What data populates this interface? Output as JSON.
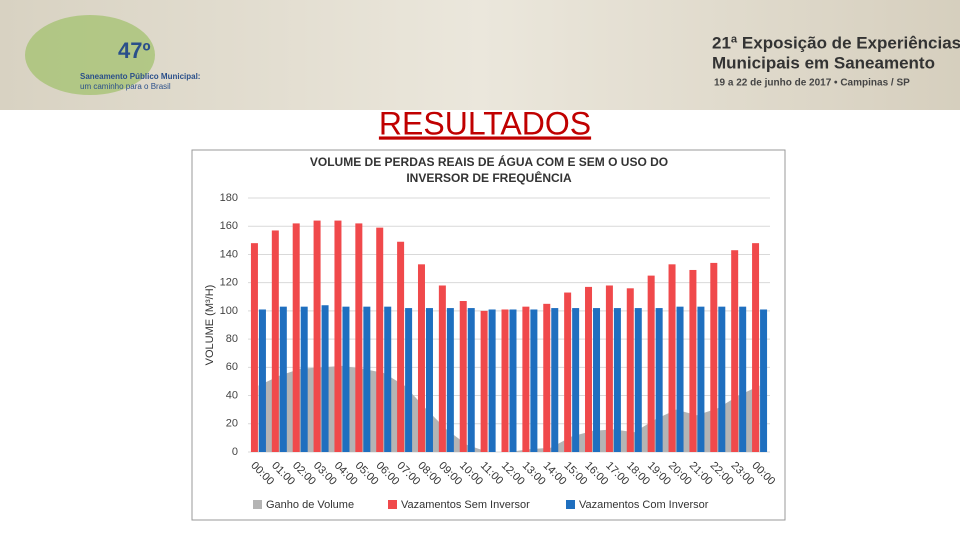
{
  "header": {
    "left_badge": "47º",
    "left_line1": "Saneamento Público Municipal:",
    "left_line2": "um caminho para o Brasil",
    "right_line1": "21ª Exposição de Experiências",
    "right_line2": "Municipais em Saneamento",
    "right_line3": "19 a 22 de junho de 2017 • Campinas / SP"
  },
  "slide_title": "RESULTADOS",
  "chart_data": {
    "type": "bar",
    "title": "VOLUME DE PERDAS REAIS DE ÁGUA COM E SEM O USO DO",
    "title_line2": "INVERSOR DE FREQUÊNCIA",
    "y_label": "VOLUME (M³/H)",
    "categories": [
      "00:00",
      "01:00",
      "02:00",
      "03:00",
      "04:00",
      "05:00",
      "06:00",
      "07:00",
      "08:00",
      "09:00",
      "10:00",
      "11:00",
      "12:00",
      "13:00",
      "14:00",
      "15:00",
      "16:00",
      "17:00",
      "18:00",
      "19:00",
      "20:00",
      "21:00",
      "22:00",
      "23:00",
      "00:00"
    ],
    "series": [
      {
        "name": "Ganho de Volume",
        "color": "#b4b4b4",
        "kind": "area",
        "values": [
          47,
          54,
          59,
          60,
          61,
          59,
          56,
          47,
          31,
          16,
          5,
          0,
          0,
          2,
          3,
          11,
          15,
          16,
          14,
          23,
          30,
          26,
          31,
          40,
          47
        ]
      },
      {
        "name": "Vazamentos Sem Inversor",
        "color": "#f0494b",
        "kind": "bar",
        "values": [
          148,
          157,
          162,
          164,
          164,
          162,
          159,
          149,
          133,
          118,
          107,
          100,
          101,
          103,
          105,
          113,
          117,
          118,
          116,
          125,
          133,
          129,
          134,
          143,
          148
        ]
      },
      {
        "name": "Vazamentos Com Inversor",
        "color": "#1f6fbf",
        "kind": "bar",
        "values": [
          101,
          103,
          103,
          104,
          103,
          103,
          103,
          102,
          102,
          102,
          102,
          101,
          101,
          101,
          102,
          102,
          102,
          102,
          102,
          102,
          103,
          103,
          103,
          103,
          101
        ]
      }
    ],
    "ylim": [
      0,
      180
    ],
    "yticks": [
      0,
      20,
      40,
      60,
      80,
      100,
      120,
      140,
      160,
      180
    ],
    "grid": true,
    "legend": "bottom"
  }
}
